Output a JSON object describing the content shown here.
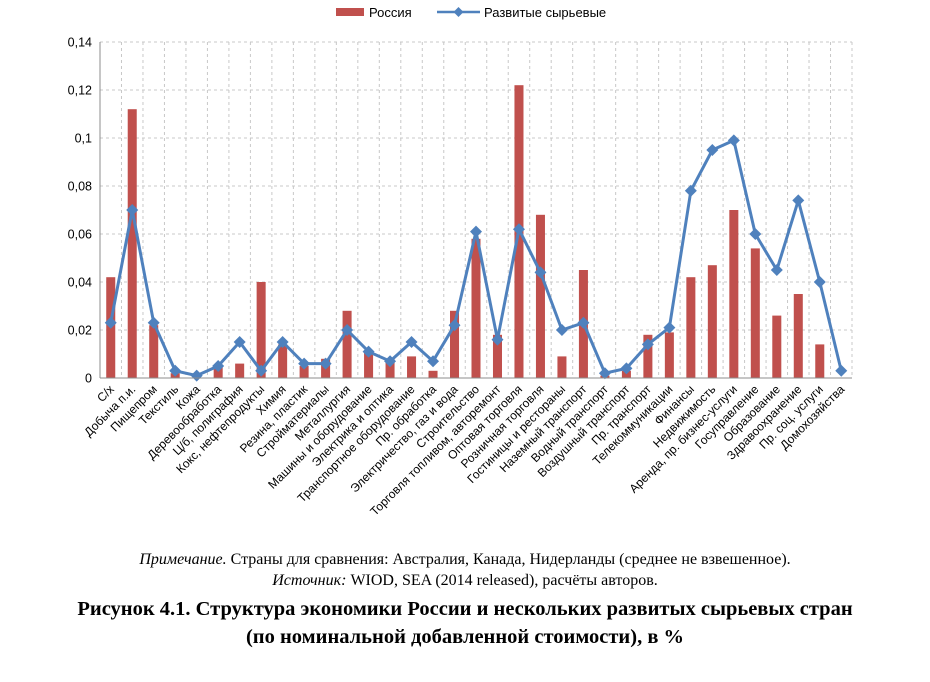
{
  "chart_data": {
    "type": "bar+line",
    "categories": [
      "С/х",
      "Добыча п.и.",
      "Пищепром",
      "Текстиль",
      "Кожа",
      "Деревообработка",
      "Ц/б, полиграфия",
      "Кокс, нефтепродукты",
      "Химия",
      "Резина, пластик",
      "Стройматериалы",
      "Металлургия",
      "Машины и оборудование",
      "Электрика и оптика",
      "Транспортное оборудование",
      "Пр. обработка",
      "Электричество, газ и вода",
      "Строительство",
      "Торговля топливом, авторемонт",
      "Оптовая торговля",
      "Розничная торговля",
      "Гостиницы и рестораны",
      "Наземный транспорт",
      "Водный транспорт",
      "Воздушный транспорт",
      "Пр. транспорт",
      "Телекоммуникации",
      "Финансы",
      "Недвижимость",
      "Аренда, пр. бизнес-услуги",
      "Госуправление",
      "Образование",
      "Здравоохранение",
      "Пр. соц. услуги",
      "Домохозяйства"
    ],
    "series": [
      {
        "name": "Россия",
        "type": "bar",
        "color": "#C0504D",
        "values": [
          0.042,
          0.112,
          0.022,
          0.002,
          0.0,
          0.005,
          0.006,
          0.04,
          0.014,
          0.005,
          0.008,
          0.028,
          0.011,
          0.008,
          0.009,
          0.003,
          0.028,
          0.058,
          0.018,
          0.122,
          0.068,
          0.009,
          0.045,
          0.001,
          0.003,
          0.018,
          0.019,
          0.042,
          0.047,
          0.07,
          0.054,
          0.026,
          0.035,
          0.014,
          0.0
        ]
      },
      {
        "name": "Развитые сырьевые",
        "type": "line",
        "color": "#4F81BD",
        "values": [
          0.023,
          0.07,
          0.023,
          0.003,
          0.001,
          0.005,
          0.015,
          0.003,
          0.015,
          0.006,
          0.006,
          0.02,
          0.011,
          0.007,
          0.015,
          0.007,
          0.022,
          0.061,
          0.016,
          0.062,
          0.044,
          0.02,
          0.023,
          0.002,
          0.004,
          0.014,
          0.021,
          0.078,
          0.095,
          0.099,
          0.06,
          0.045,
          0.074,
          0.04,
          0.003
        ]
      }
    ],
    "yticks": [
      "0",
      "0,02",
      "0,04",
      "0,06",
      "0,08",
      "0,1",
      "0,12",
      "0,14"
    ],
    "ylim": [
      0,
      0.14
    ],
    "grid": true,
    "legend_position": "top"
  },
  "note": {
    "label": "Примечание.",
    "text": " Страны для сравнения: Австралия, Канада, Нидерланды (среднее не взвешенное)."
  },
  "source": {
    "label": "Источник:",
    "text": " WIOD, SEA (2014 released), расчёты авторов."
  },
  "caption": {
    "line1": "Рисунок 4.1. Структура экономики России и нескольких развитых сырьевых стран",
    "line2": "(по номинальной добавленной стоимости), в %"
  }
}
